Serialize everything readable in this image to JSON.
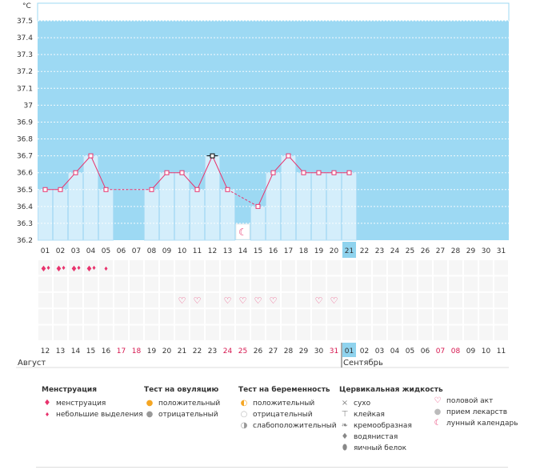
{
  "chart_data": {
    "type": "bar",
    "title": "",
    "ylabel": "°C",
    "ylim": [
      36.2,
      37.55
    ],
    "y_ticks": [
      "37.5",
      "37.4",
      "37.3",
      "37.2",
      "37.1",
      "37",
      "36.9",
      "36.8",
      "36.7",
      "36.6",
      "36.5",
      "36.4",
      "36.3",
      "36.2"
    ],
    "cycle_days": [
      "01",
      "02",
      "03",
      "04",
      "05",
      "06",
      "07",
      "08",
      "09",
      "10",
      "11",
      "12",
      "13",
      "14",
      "15",
      "16",
      "17",
      "18",
      "19",
      "20",
      "21",
      "22",
      "23",
      "24",
      "25",
      "26",
      "27",
      "28",
      "29",
      "30",
      "31"
    ],
    "values": [
      36.5,
      36.5,
      36.6,
      36.7,
      36.5,
      null,
      null,
      36.5,
      36.6,
      36.6,
      36.5,
      36.7,
      36.5,
      null,
      36.4,
      36.6,
      36.7,
      36.6,
      36.6,
      36.6,
      36.6,
      null,
      null,
      null,
      null,
      null,
      null,
      null,
      null,
      null,
      null
    ],
    "current_day_index": 20,
    "highlight_point_index": 11,
    "dashed_segments": [
      [
        4,
        7
      ],
      [
        12,
        14
      ]
    ],
    "moon_day_index": 13,
    "dates": [
      "12",
      "13",
      "14",
      "15",
      "16",
      "17",
      "18",
      "19",
      "20",
      "21",
      "22",
      "23",
      "24",
      "25",
      "26",
      "27",
      "28",
      "29",
      "30",
      "31",
      "01",
      "02",
      "03",
      "04",
      "05",
      "06",
      "07",
      "08",
      "09",
      "10",
      "11"
    ],
    "weekend_indices": [
      5,
      6,
      12,
      13,
      19,
      26,
      27
    ],
    "months": [
      {
        "label": "Август",
        "start_index": 0
      },
      {
        "label": "Сентябрь",
        "start_index": 20
      }
    ],
    "menstruation": [
      "big",
      "big",
      "big",
      "big",
      "small"
    ],
    "intercourse_indices": [
      9,
      10,
      12,
      13,
      14,
      15,
      18,
      19
    ],
    "colors": {
      "background": "#9dd9f3",
      "bar": "#d4eefb",
      "bar_border": "#b3dff6",
      "line": "#e8336d",
      "today": "#8fd3ee",
      "weekend_text": "#d6164f",
      "grid": "#ffffff"
    }
  },
  "legend": {
    "groups": [
      {
        "title": "Менструация",
        "items": [
          {
            "icon": "drop-big-icon",
            "label": "менструация"
          },
          {
            "icon": "drop-small-icon",
            "label": "небольшие выделения"
          }
        ]
      },
      {
        "title": "Тест на овуляцию",
        "items": [
          {
            "icon": "ovulation-positive-icon",
            "label": "положительный"
          },
          {
            "icon": "ovulation-negative-icon",
            "label": "отрицательный"
          }
        ]
      },
      {
        "title": "Тест на беременность",
        "items": [
          {
            "icon": "pregnancy-positive-icon",
            "label": "положительный"
          },
          {
            "icon": "pregnancy-negative-icon",
            "label": "отрицательный"
          },
          {
            "icon": "pregnancy-weak-icon",
            "label": "слабоположительный"
          }
        ]
      },
      {
        "title": "Цервикальная жидкость",
        "items": [
          {
            "icon": "dry-icon",
            "label": "сухо"
          },
          {
            "icon": "sticky-icon",
            "label": "клейкая"
          },
          {
            "icon": "creamy-icon",
            "label": "кремообразная"
          },
          {
            "icon": "watery-icon",
            "label": "водянистая"
          },
          {
            "icon": "egg-white-icon",
            "label": "яичный белок"
          }
        ]
      },
      {
        "title": "",
        "items": [
          {
            "icon": "heart-icon",
            "label": "половой акт"
          },
          {
            "icon": "pill-icon",
            "label": "прием лекарств"
          },
          {
            "icon": "moon-icon",
            "label": "лунный календарь"
          }
        ]
      }
    ]
  }
}
